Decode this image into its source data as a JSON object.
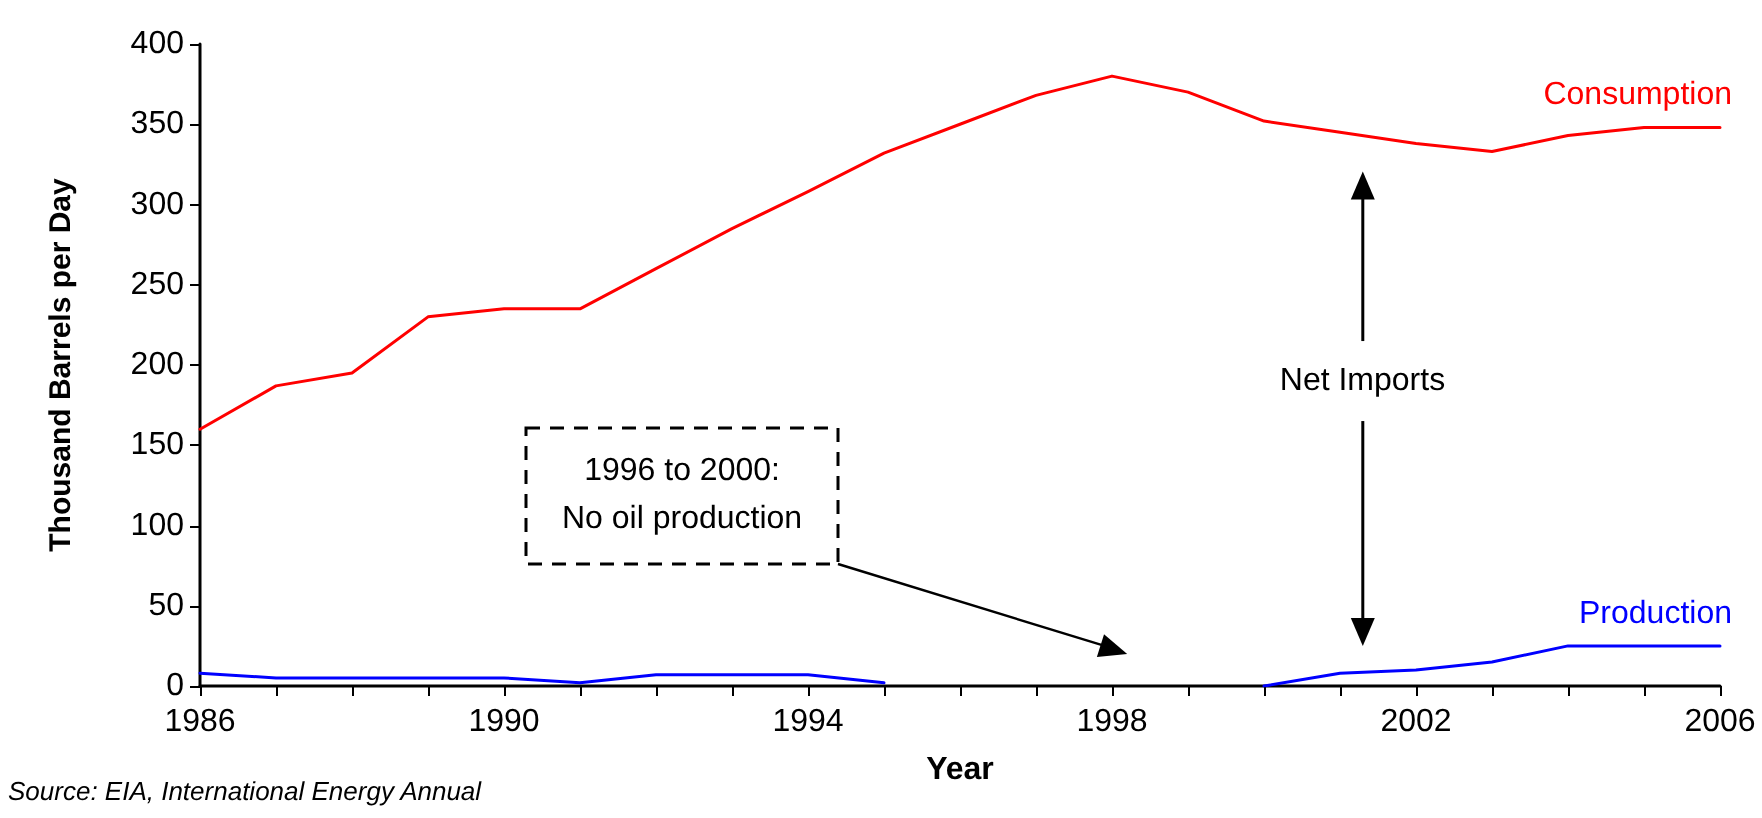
{
  "chart_data": {
    "type": "line",
    "xlabel": "Year",
    "ylabel": "Thousand Barrels per Day",
    "x": [
      1986,
      1987,
      1988,
      1989,
      1990,
      1991,
      1992,
      1993,
      1994,
      1995,
      1996,
      1997,
      1998,
      1999,
      2000,
      2001,
      2002,
      2003,
      2004,
      2005,
      2006
    ],
    "series": [
      {
        "name": "Consumption",
        "color": "#ff0000",
        "values": [
          160,
          187,
          195,
          230,
          235,
          235,
          260,
          285,
          308,
          332,
          350,
          368,
          380,
          370,
          352,
          345,
          338,
          333,
          343,
          348,
          348
        ]
      },
      {
        "name": "Production",
        "color": "#0000ff",
        "values": [
          8,
          5,
          5,
          5,
          5,
          2,
          7,
          7,
          7,
          2,
          null,
          null,
          null,
          null,
          0,
          8,
          10,
          15,
          25,
          25,
          25
        ]
      }
    ],
    "xlim": [
      1986,
      2006
    ],
    "xticks": [
      1986,
      {
        "value": 1987,
        "label": null
      },
      {
        "value": 1988,
        "label": null
      },
      {
        "value": 1989,
        "label": null
      },
      1990,
      {
        "value": 1991,
        "label": null
      },
      {
        "value": 1992,
        "label": null
      },
      {
        "value": 1993,
        "label": null
      },
      1994,
      {
        "value": 1995,
        "label": null
      },
      {
        "value": 1996,
        "label": null
      },
      {
        "value": 1997,
        "label": null
      },
      1998,
      {
        "value": 1999,
        "label": null
      },
      {
        "value": 2000,
        "label": null
      },
      {
        "value": 2001,
        "label": null
      },
      2002,
      {
        "value": 2003,
        "label": null
      },
      {
        "value": 2004,
        "label": null
      },
      {
        "value": 2005,
        "label": null
      },
      2006
    ],
    "ylim": [
      0,
      400
    ],
    "yticks": [
      0,
      50,
      100,
      150,
      200,
      250,
      300,
      350,
      400
    ],
    "grid": false,
    "legend": false,
    "marker": "none",
    "line_style": "solid",
    "annotations": [
      "Net Imports",
      "1996 to 2000:\nNo oil production",
      "Source: EIA, International Energy Annual"
    ]
  }
}
